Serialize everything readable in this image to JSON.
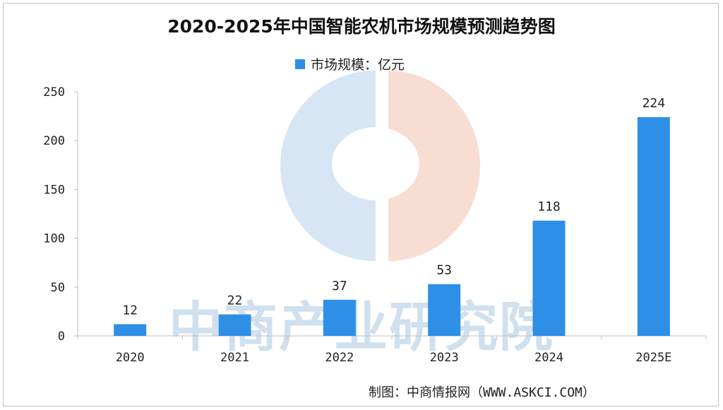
{
  "chart_data": {
    "type": "bar",
    "title": "2020-2025年中国智能农机市场规模预测趋势图",
    "categories": [
      "2020",
      "2021",
      "2022",
      "2023",
      "2024",
      "2025E"
    ],
    "series": [
      {
        "name": "市场规模：亿元",
        "values": [
          12,
          22,
          37,
          53,
          118,
          224
        ]
      }
    ],
    "data_labels": [
      "12",
      "22",
      "37",
      "53",
      "118",
      "224"
    ],
    "y_ticks": [
      0,
      50,
      100,
      150,
      200,
      250
    ],
    "ylim": [
      0,
      250
    ],
    "xlabel": "",
    "ylabel": "",
    "grid": false,
    "legend_position": "top-center",
    "bar_color": "#2e8fe6"
  },
  "source": "制图：中商情报网（WWW.ASKCI.COM）",
  "watermark": "中商产业研究院"
}
